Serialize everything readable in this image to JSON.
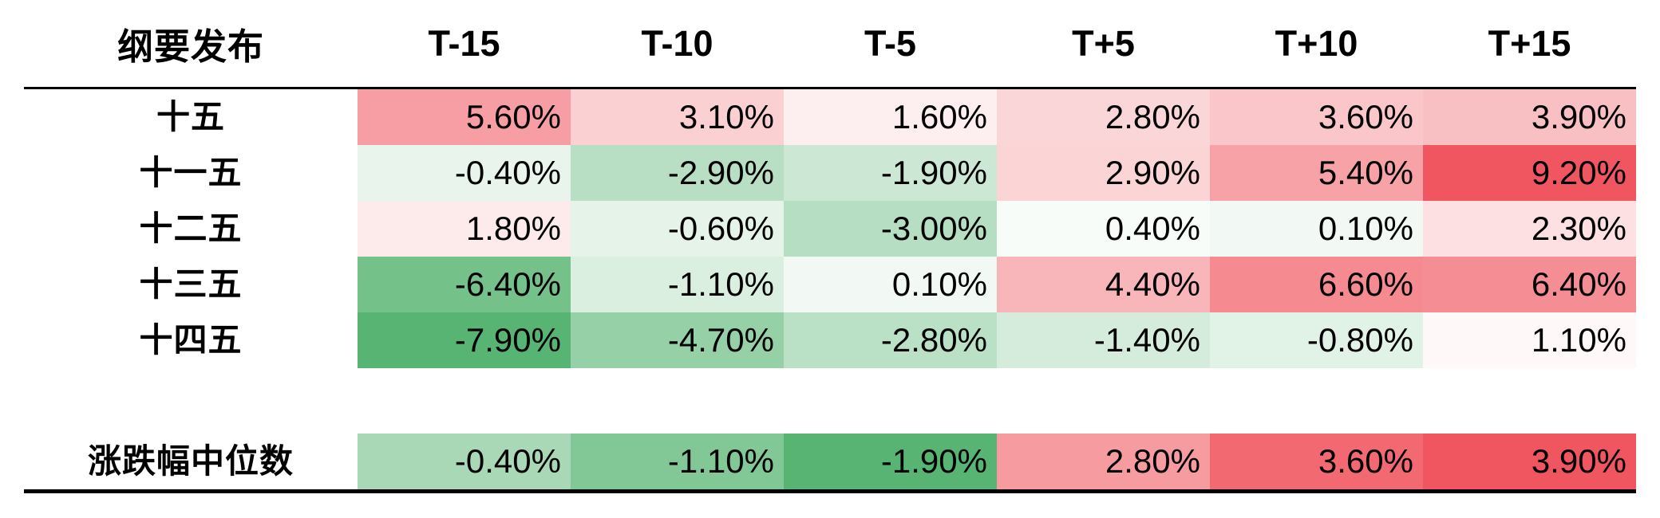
{
  "header": {
    "corner_label": "纲要发布",
    "columns": [
      "T-15",
      "T-10",
      "T-5",
      "T+5",
      "T+10",
      "T+15"
    ]
  },
  "table": {
    "rows": [
      {
        "label": "十五",
        "cells": [
          "5.60%",
          "3.10%",
          "1.60%",
          "2.80%",
          "3.60%",
          "3.90%"
        ]
      },
      {
        "label": "十一五",
        "cells": [
          "-0.40%",
          "-2.90%",
          "-1.90%",
          "2.90%",
          "5.40%",
          "9.20%"
        ]
      },
      {
        "label": "十二五",
        "cells": [
          "1.80%",
          "-0.60%",
          "-3.00%",
          "0.40%",
          "0.10%",
          "2.30%"
        ]
      },
      {
        "label": "十三五",
        "cells": [
          "-6.40%",
          "-1.10%",
          "0.10%",
          "4.40%",
          "6.60%",
          "6.40%"
        ]
      },
      {
        "label": "十四五",
        "cells": [
          "-7.90%",
          "-4.70%",
          "-2.80%",
          "-1.40%",
          "-0.80%",
          "1.10%"
        ]
      }
    ],
    "summary": {
      "label": "涨跌幅中位数",
      "cells": [
        "-0.40%",
        "-1.10%",
        "-1.90%",
        "2.80%",
        "3.60%",
        "3.90%"
      ]
    }
  },
  "colors": {
    "positive_max": "#f0565f",
    "negative_max": "#57b472",
    "neutral": "#ffffff",
    "text": "#000000",
    "rule": "#000000"
  },
  "chart_data": {
    "type": "heatmap",
    "corner_label": "纲要发布",
    "x_labels": [
      "T-15",
      "T-10",
      "T-5",
      "T+5",
      "T+10",
      "T+15"
    ],
    "y_labels": [
      "十五",
      "十一五",
      "十二五",
      "十三五",
      "十四五"
    ],
    "values": [
      [
        5.6,
        3.1,
        1.6,
        2.8,
        3.6,
        3.9
      ],
      [
        -0.4,
        -2.9,
        -1.9,
        2.9,
        5.4,
        9.2
      ],
      [
        1.8,
        -0.6,
        -3.0,
        0.4,
        0.1,
        2.3
      ],
      [
        -6.4,
        -1.1,
        0.1,
        4.4,
        6.6,
        6.4
      ],
      [
        -7.9,
        -4.7,
        -2.8,
        -1.4,
        -0.8,
        1.1
      ]
    ],
    "summary": {
      "label": "涨跌幅中位数",
      "values": [
        -0.4,
        -1.1,
        -1.9,
        2.8,
        3.6,
        3.9
      ]
    },
    "unit": "%",
    "color_scale": {
      "min_color": "#57b472",
      "mid_color": "#ffffff",
      "max_color": "#f0565f",
      "midpoint": "median"
    }
  }
}
